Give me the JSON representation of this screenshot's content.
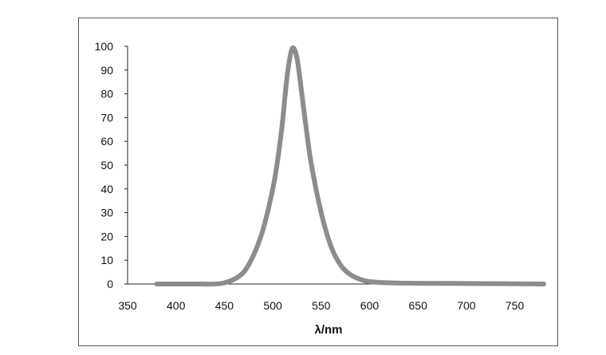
{
  "chart_data": {
    "type": "line",
    "title": "",
    "xlabel": "λ/nm",
    "ylabel": "",
    "xlim": [
      350,
      780
    ],
    "ylim": [
      0,
      100
    ],
    "x_ticks": [
      350,
      400,
      450,
      500,
      550,
      600,
      650,
      700,
      750
    ],
    "y_ticks": [
      0,
      10,
      20,
      30,
      40,
      50,
      60,
      70,
      80,
      90,
      100
    ],
    "grid": false,
    "legend": "none",
    "line_color": "#8c8c8c",
    "series": [
      {
        "x": [
          380,
          400,
          420,
          440,
          450,
          460,
          470,
          480,
          490,
          500,
          505,
          510,
          515,
          520,
          525,
          530,
          535,
          540,
          550,
          560,
          570,
          580,
          590,
          600,
          620,
          650,
          700,
          750,
          780
        ],
        "values": [
          0,
          0,
          0,
          0,
          0.5,
          2,
          5,
          12,
          23,
          40,
          52,
          68,
          88,
          99,
          95,
          80,
          64,
          50,
          30,
          16,
          8,
          4,
          2,
          1,
          0.5,
          0.3,
          0.2,
          0.1,
          0
        ]
      }
    ]
  }
}
